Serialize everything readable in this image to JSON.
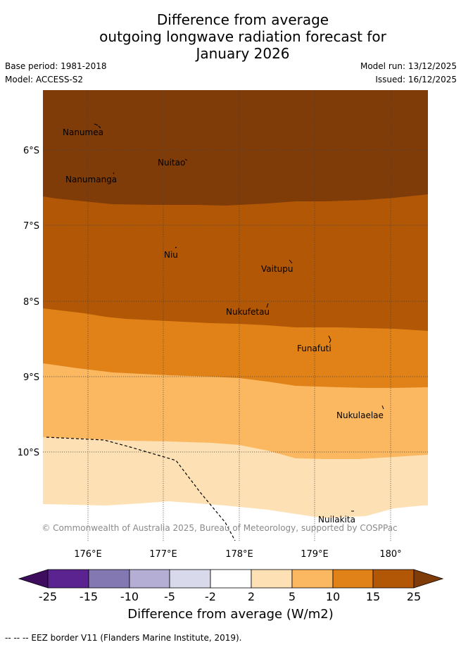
{
  "title": {
    "line1": "Difference from average",
    "line2": "outgoing longwave radiation forecast for",
    "line3": "January 2026"
  },
  "meta": {
    "base_period": "Base period: 1981-2018",
    "model": "Model: ACCESS-S2",
    "model_run": "Model run: 13/12/2025",
    "issued": "Issued: 16/12/2025"
  },
  "map": {
    "latitude_labels": [
      "6°S",
      "7°S",
      "8°S",
      "9°S",
      "10°S"
    ],
    "longitude_labels": [
      "176°E",
      "177°E",
      "178°E",
      "179°E",
      "180°"
    ],
    "places": [
      "Nanumea",
      "Nuitao",
      "Nanumanga",
      "Niu",
      "Vaitupu",
      "Nukufetau",
      "Funafuti",
      "Nukulaelae",
      "Nuilakita"
    ],
    "credit": "© Commonwealth of Australia 2025, Bureau of Meteorology, supported by COSPPac"
  },
  "colorbar": {
    "ticks": [
      "-25",
      "-15",
      "-10",
      "-5",
      "-2",
      "2",
      "5",
      "10",
      "15",
      "25"
    ],
    "colors": [
      "#3f0d5e",
      "#5b2390",
      "#8478b3",
      "#b4aed4",
      "#d9d9ec",
      "#ffffff",
      "#fde0b4",
      "#fbb861",
      "#e08217",
      "#b15706",
      "#7f3b08"
    ],
    "title": "Difference from average (W/m2)"
  },
  "legend": {
    "footnote": "--  --  -- EEZ border V11 (Flanders Marine Institute, 2019)."
  }
}
